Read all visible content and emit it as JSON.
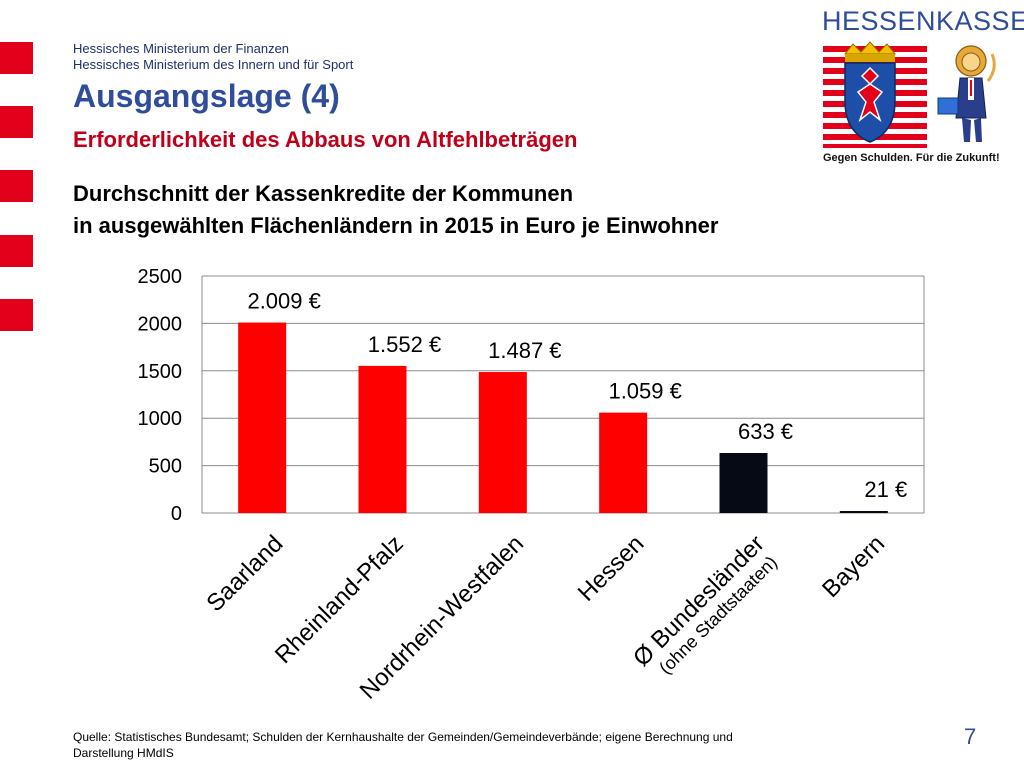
{
  "header": {
    "ministry_line1": "Hessisches Ministerium der Finanzen",
    "ministry_line2": "Hessisches Ministerium des Innern und für Sport",
    "title": "Ausgangslage (4)",
    "subtitle": "Erforderlichkeit des Abbaus von Altfehlbeträgen"
  },
  "logo": {
    "text": "HESSENKASSE",
    "slogan": "Gegen Schulden. Für die Zukunft!"
  },
  "chart_data": {
    "type": "bar",
    "title_line1": "Durchschnitt der Kassenkredite der Kommunen",
    "title_line2": "in ausgewählten Flächenländern in 2015 in Euro je Einwohner",
    "categories": [
      "Saarland",
      "Rheinland-Pfalz",
      "Nordrhein-Westfalen",
      "Hessen",
      "Ø Bundesländer",
      "Bayern"
    ],
    "category_sublabels": [
      "",
      "",
      "",
      "",
      "(ohne Stadtstaaten)",
      ""
    ],
    "values": [
      2009,
      1552,
      1487,
      1059,
      633,
      21
    ],
    "value_labels": [
      "2.009 €",
      "1.552 €",
      "1.487 €",
      "1.059 €",
      "633 €",
      "21 €"
    ],
    "bar_colors": [
      "#ff0000",
      "#ff0000",
      "#ff0000",
      "#ff0000",
      "#050a14",
      "#050a14"
    ],
    "yticks": [
      "0",
      "500",
      "1000",
      "1500",
      "2000",
      "2500"
    ],
    "ylim": [
      0,
      2500
    ],
    "grid": true
  },
  "footer": {
    "source_line1": "Quelle: Statistisches Bundesamt; Schulden der Kernhaushalte der Gemeinden/Gemeindeverbände; eigene Berechnung und",
    "source_line2": "Darstellung HMdIS",
    "page_number": "7"
  }
}
